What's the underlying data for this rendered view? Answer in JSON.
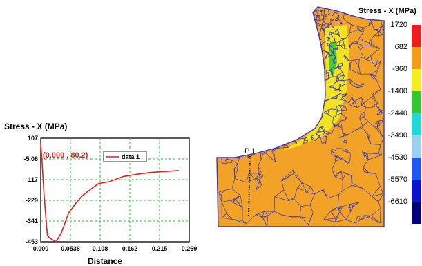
{
  "chart_data": {
    "type": "line",
    "title": "Stress - X (MPa)",
    "xlabel": "Distance",
    "ylabel": "",
    "x_ticks": [
      "0.000",
      "0.0538",
      "0.108",
      "0.162",
      "0.215",
      "0.269"
    ],
    "y_ticks": [
      "107",
      "-5.06",
      "-117",
      "-229",
      "-341",
      "-453"
    ],
    "xlim": [
      0,
      0.269
    ],
    "ylim": [
      -453,
      107
    ],
    "grid": true,
    "legend_position": "top-right",
    "annotation": "(0.000 , 80.2)",
    "series": [
      {
        "name": "data 1",
        "color": "#e02020",
        "x": [
          0.0,
          0.002,
          0.006,
          0.012,
          0.02,
          0.028,
          0.038,
          0.05,
          0.062,
          0.075,
          0.09,
          0.105,
          0.125,
          0.15,
          0.175,
          0.2,
          0.225,
          0.25
        ],
        "y": [
          80.2,
          -5,
          -200,
          -420,
          -440,
          -453,
          -400,
          -300,
          -250,
          -205,
          -170,
          -138,
          -128,
          -100,
          -88,
          -78,
          -73,
          -68
        ]
      }
    ]
  },
  "mesh_view": {
    "legend_title": "Stress - X (MPa)",
    "colorbar_labels": [
      "1720",
      "682",
      "-360",
      "-1400",
      "-2440",
      "-3490",
      "-4530",
      "-5570",
      "-6610"
    ],
    "colorbar_colors": [
      "#ee1c1c",
      "#f29c1e",
      "#f2ee22",
      "#33c733",
      "#20d8d8",
      "#9ad0ee",
      "#2055ee",
      "#0a14cc",
      "#00007a"
    ],
    "mesh_fill_color": "#f2a226",
    "mesh_line_color": "#3a3ab8",
    "probe_label": "P 1"
  }
}
